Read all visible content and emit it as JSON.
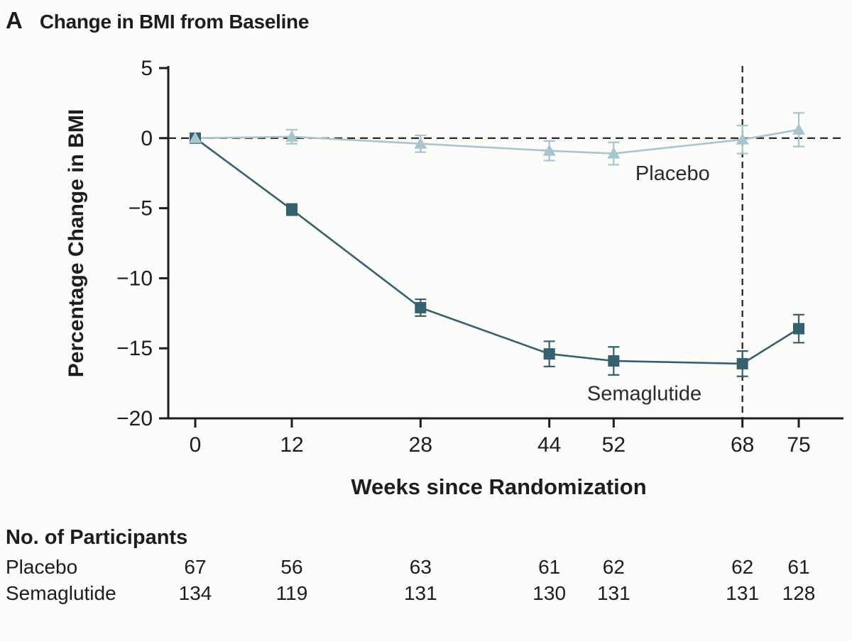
{
  "header": {
    "panel": "A",
    "title": "Change in BMI from Baseline"
  },
  "colors": {
    "ink": "#1d1d1b",
    "background": "#fcfcfa"
  },
  "chart_data": {
    "type": "line",
    "title": "Change in BMI from Baseline",
    "xlabel": "Weeks since Randomization",
    "ylabel": "Percentage Change in BMI",
    "weeks": [
      0,
      12,
      28,
      44,
      52,
      68,
      75
    ],
    "xtick_labels": [
      "0",
      "12",
      "28",
      "44",
      "52",
      "68",
      "75"
    ],
    "yticks": [
      {
        "v": 5,
        "label": "5"
      },
      {
        "v": 0,
        "label": "0"
      },
      {
        "v": -5,
        "label": "−5"
      },
      {
        "v": -10,
        "label": "−10"
      },
      {
        "v": -15,
        "label": "−15"
      },
      {
        "v": -20,
        "label": "−20"
      }
    ],
    "ylim": [
      -20,
      5
    ],
    "xlim": [
      0,
      78
    ],
    "grid": false,
    "zero_reference_line": true,
    "vline_week": 68,
    "series": [
      {
        "name": "Semaglutide",
        "marker": "square",
        "color": "#35606d",
        "values": [
          0,
          -5.1,
          -12.1,
          -15.4,
          -15.9,
          -16.1,
          -13.6
        ],
        "errors": [
          0.2,
          0.4,
          0.6,
          0.9,
          1.0,
          0.9,
          1.0
        ]
      },
      {
        "name": "Placebo",
        "marker": "triangle",
        "color": "#a7c4cf",
        "values": [
          0,
          0.1,
          -0.4,
          -0.9,
          -1.1,
          -0.1,
          0.6
        ],
        "errors": [
          0.3,
          0.5,
          0.6,
          0.7,
          0.8,
          1.0,
          1.2
        ]
      }
    ],
    "annotations": [
      {
        "text": "Placebo",
        "week": 54.7,
        "value": -3.0
      },
      {
        "text": "Semaglutide",
        "week": 48.7,
        "value": -18.7
      }
    ]
  },
  "participants": {
    "heading": "No. of Participants",
    "rows": [
      {
        "label": "Placebo",
        "values": [
          "67",
          "56",
          "63",
          "61",
          "62",
          "62",
          "61"
        ]
      },
      {
        "label": "Semaglutide",
        "values": [
          "134",
          "119",
          "131",
          "130",
          "131",
          "131",
          "128"
        ]
      }
    ]
  }
}
